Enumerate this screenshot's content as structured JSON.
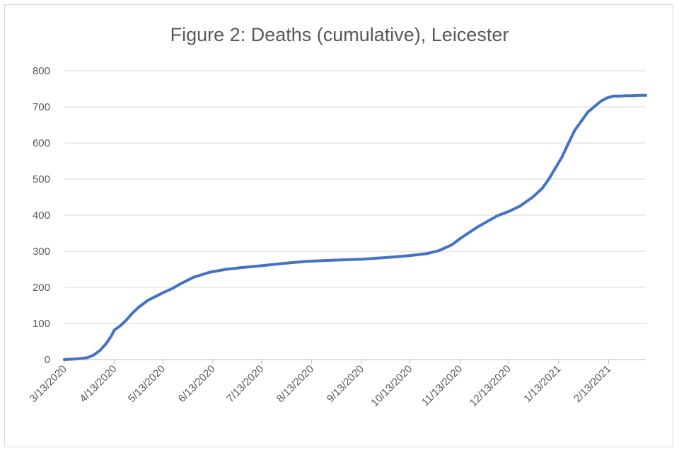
{
  "chart_data": {
    "type": "line",
    "title": "Figure 2: Deaths (cumulative), Leicester",
    "xlabel": "",
    "ylabel": "",
    "ylim": [
      0,
      800
    ],
    "yticks": [
      0,
      100,
      200,
      300,
      400,
      500,
      600,
      700,
      800
    ],
    "x_tick_labels": [
      "3/13/2020",
      "4/13/2020",
      "5/13/2020",
      "6/13/2020",
      "7/13/2020",
      "8/13/2020",
      "9/13/2020",
      "10/13/2020",
      "11/13/2020",
      "12/13/2020",
      "1/13/2021",
      "2/13/2021"
    ],
    "x_tick_days": [
      0,
      31,
      61,
      92,
      122,
      153,
      184,
      214,
      245,
      275,
      306,
      337
    ],
    "xlim_days": [
      0,
      360
    ],
    "grid": true,
    "legend": "none",
    "series": [
      {
        "name": "Deaths (cumulative)",
        "color": "#4472c4",
        "x_days": [
          0,
          8,
          14,
          18,
          22,
          26,
          29,
          31,
          35,
          38,
          42,
          46,
          52,
          58,
          61,
          66,
          72,
          80,
          90,
          100,
          110,
          122,
          135,
          150,
          165,
          184,
          200,
          214,
          225,
          232,
          240,
          245,
          250,
          255,
          262,
          268,
          275,
          282,
          290,
          296,
          300,
          304,
          308,
          312,
          316,
          320,
          324,
          328,
          332,
          336,
          340,
          344,
          348,
          352,
          356,
          360
        ],
        "values": [
          0,
          2,
          5,
          12,
          25,
          45,
          65,
          82,
          95,
          108,
          128,
          145,
          165,
          178,
          185,
          195,
          210,
          228,
          242,
          250,
          255,
          260,
          266,
          272,
          275,
          278,
          283,
          288,
          294,
          302,
          318,
          335,
          350,
          365,
          383,
          398,
          410,
          425,
          450,
          475,
          500,
          530,
          560,
          598,
          635,
          660,
          685,
          700,
          715,
          725,
          730,
          730,
          731,
          731,
          732,
          732
        ]
      }
    ]
  }
}
